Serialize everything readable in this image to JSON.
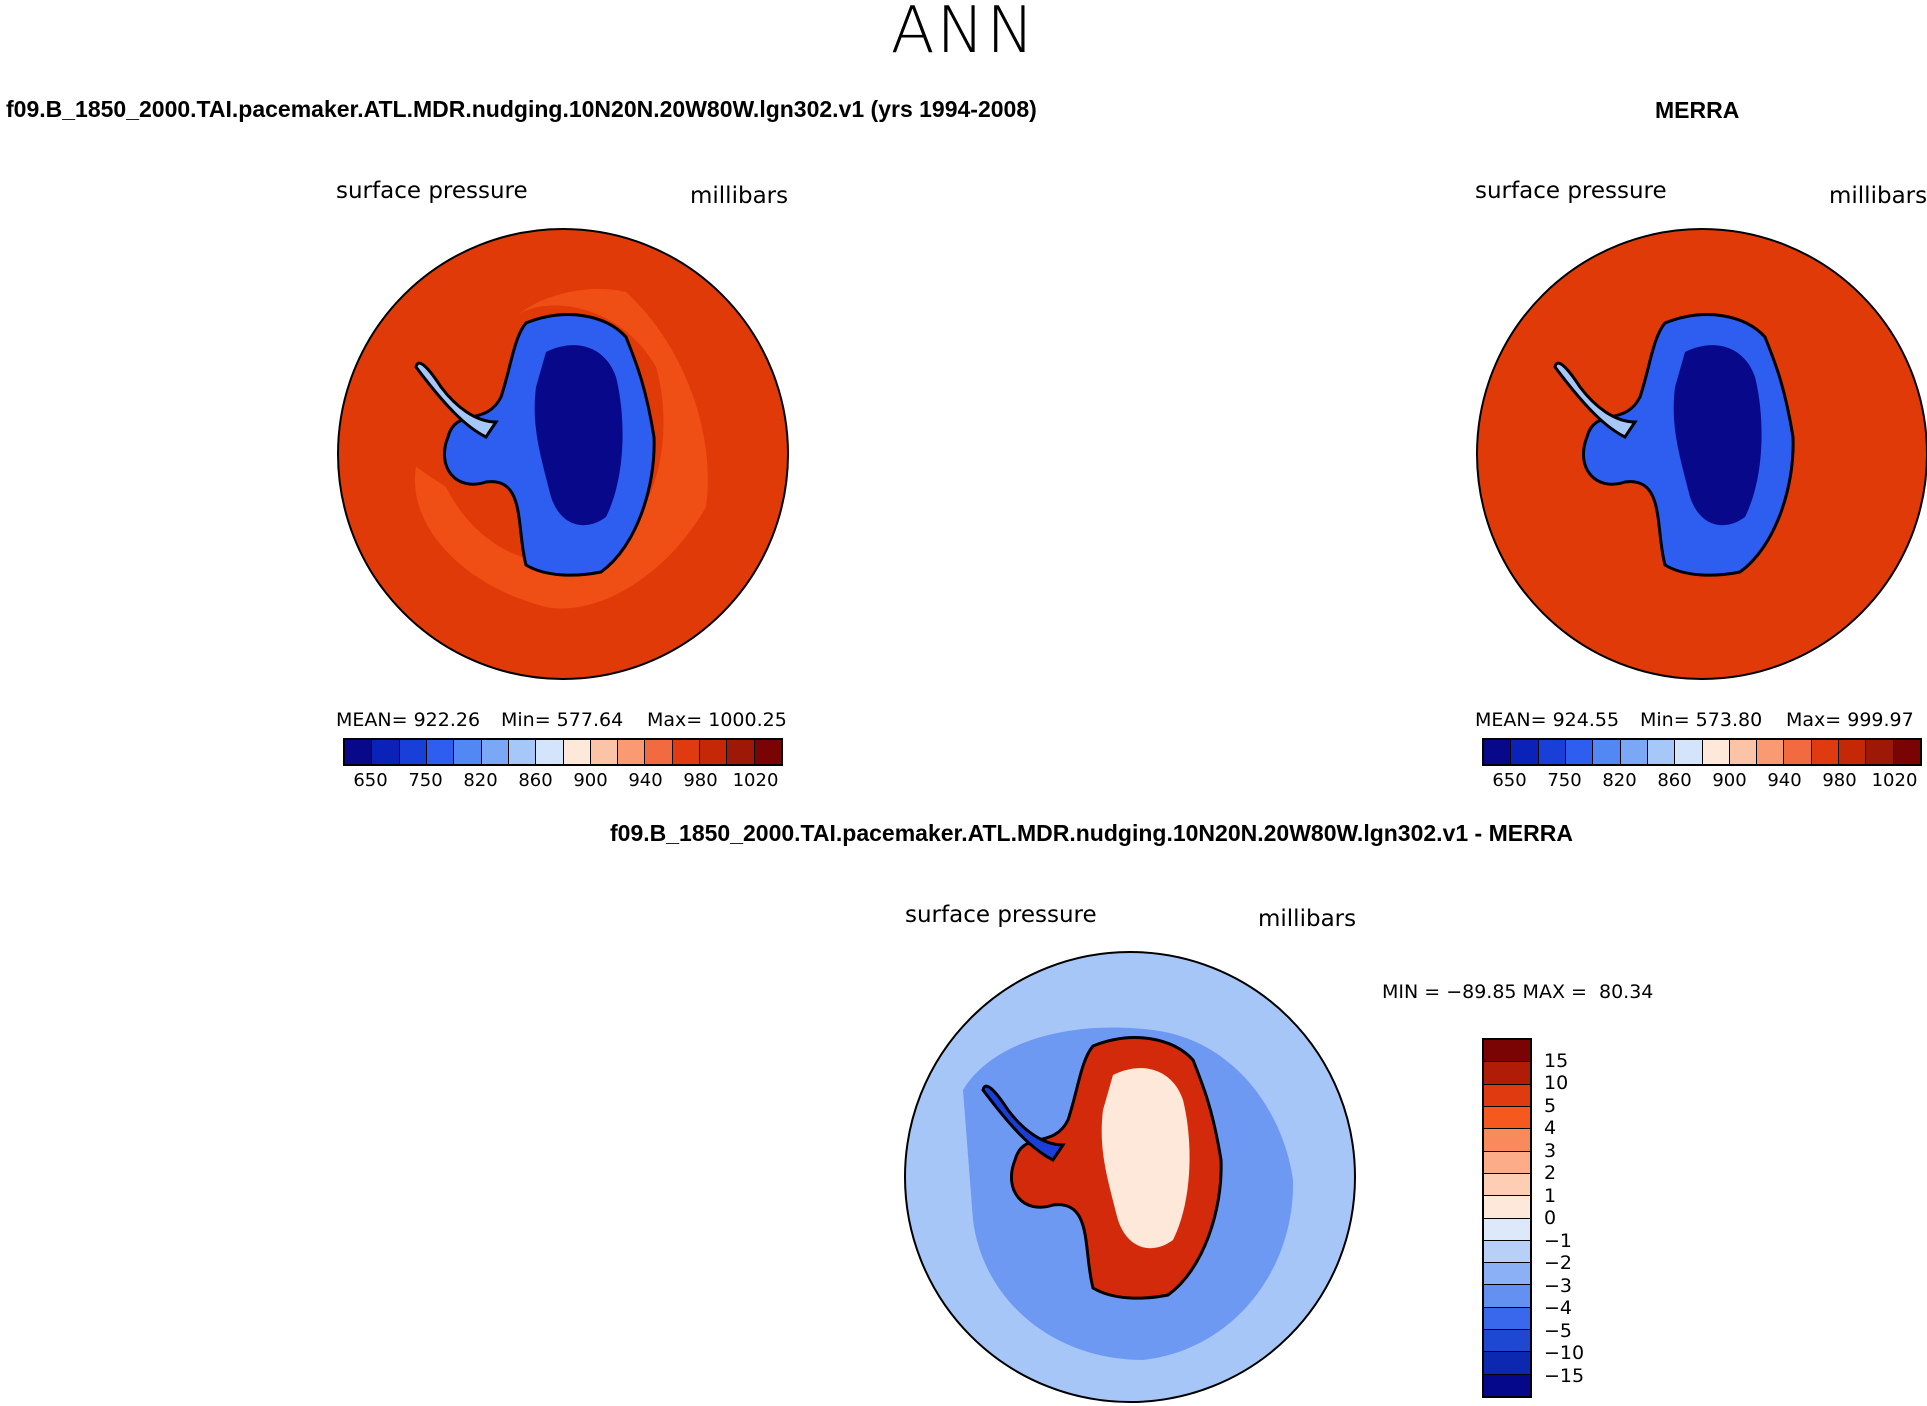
{
  "figure_title": "ANN",
  "panels": [
    {
      "heading": "f09.B_1850_2000.TAI.pacemaker.ATL.MDR.nudging.10N20N.20W80W.lgn302.v1 (yrs 1994-2008)",
      "variable": "surface pressure",
      "units": "millibars",
      "stats": {
        "mean": "MEAN= 922.26",
        "min": "Min= 577.64",
        "max": "Max= 1000.25"
      }
    },
    {
      "heading": "MERRA",
      "variable": "surface pressure",
      "units": "millibars",
      "stats": {
        "mean": "MEAN= 924.55",
        "min": "Min= 573.80",
        "max": "Max= 999.97"
      }
    },
    {
      "heading": "f09.B_1850_2000.TAI.pacemaker.ATL.MDR.nudging.10N20N.20W80W.lgn302.v1 - MERRA",
      "variable": "surface pressure",
      "units": "millibars",
      "stats_text": "MIN = −89.85 MAX =  80.34"
    }
  ],
  "colorbar_abs": {
    "tick_labels": [
      "650",
      "750",
      "820",
      "860",
      "900",
      "940",
      "980",
      "1020"
    ],
    "colors": [
      "#08088a",
      "#0a22b8",
      "#1840d8",
      "#2e5ef0",
      "#5288f4",
      "#7aa8f6",
      "#a6c8f8",
      "#d4e4fa",
      "#fde8da",
      "#fcc4a6",
      "#f99a72",
      "#f26a40",
      "#e03a10",
      "#c42806",
      "#9e1808",
      "#7a0404"
    ]
  },
  "colorbar_diff": {
    "tick_labels": [
      "15",
      "10",
      "5",
      "4",
      "3",
      "2",
      "1",
      "0",
      "−1",
      "−2",
      "−3",
      "−4",
      "−5",
      "−10",
      "−15"
    ],
    "colors": [
      "#7a0404",
      "#b01c06",
      "#e03a10",
      "#f5591e",
      "#f98a5c",
      "#fcac88",
      "#fdcdb4",
      "#fde8da",
      "#dde9fb",
      "#b8d0f8",
      "#8cb0f6",
      "#6490f2",
      "#3a68ec",
      "#1e48d2",
      "#0c28b0",
      "#06088c"
    ]
  },
  "map_colors": {
    "ocean_pressure": "#e03a08",
    "ocean_pressure_light": "#f25418",
    "ice_low": "#08088a",
    "diff_ocean": "#a6c6f8",
    "diff_pos": "#d42a0c",
    "diff_neg": "#1c3ed8"
  }
}
